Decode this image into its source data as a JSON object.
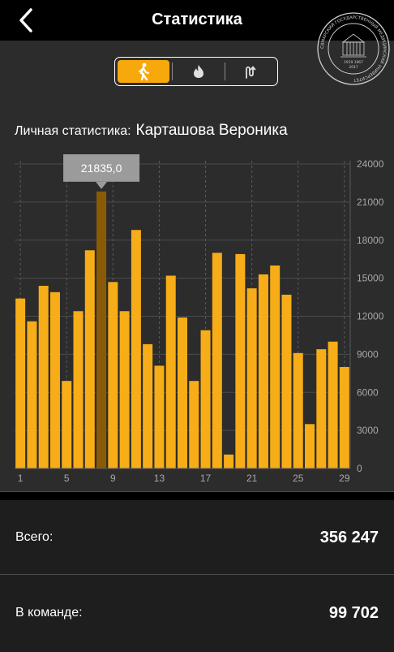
{
  "header": {
    "title": "Статистика",
    "seal_text": "САМАРСКИЙ ГОСУДАРСТВЕННЫЙ МЕДИЦИНСКИЙ УНИВЕРСИТЕТ",
    "seal_years": "1919   1967",
    "seal_year2": "2017"
  },
  "tabs": [
    {
      "icon": "walking-person-icon",
      "active": true
    },
    {
      "icon": "flame-icon",
      "active": false
    },
    {
      "icon": "route-icon",
      "active": false
    }
  ],
  "personal": {
    "label": "Личная статистика:",
    "name": "Карташова Вероника"
  },
  "chart_data": {
    "type": "bar",
    "x": [
      1,
      2,
      3,
      4,
      5,
      6,
      7,
      8,
      9,
      10,
      11,
      12,
      13,
      14,
      15,
      16,
      17,
      18,
      19,
      20,
      21,
      22,
      23,
      24,
      25,
      26,
      27,
      28,
      29
    ],
    "values": [
      13400,
      11600,
      14400,
      13900,
      6900,
      12400,
      17200,
      21835,
      14700,
      12400,
      18800,
      9800,
      8100,
      15200,
      11900,
      6900,
      10900,
      17000,
      1100,
      16900,
      14200,
      15300,
      16000,
      13700,
      9100,
      3500,
      9400,
      10000,
      8000
    ],
    "x_tick_labels": [
      "1",
      "5",
      "9",
      "13",
      "17",
      "21",
      "25",
      "29"
    ],
    "y_ticks": [
      "0",
      "3000",
      "6000",
      "9000",
      "12000",
      "15000",
      "18000",
      "21000",
      "24000"
    ],
    "ylim": [
      0,
      25000
    ],
    "highlight_index": 7,
    "tooltip": "21835,0",
    "bar_color": "#f7ad17",
    "highlight_color": "#8a5b06"
  },
  "summary": {
    "total_label": "Всего:",
    "total_value": "356 247",
    "team_label": "В команде:",
    "team_value": "99 702"
  }
}
